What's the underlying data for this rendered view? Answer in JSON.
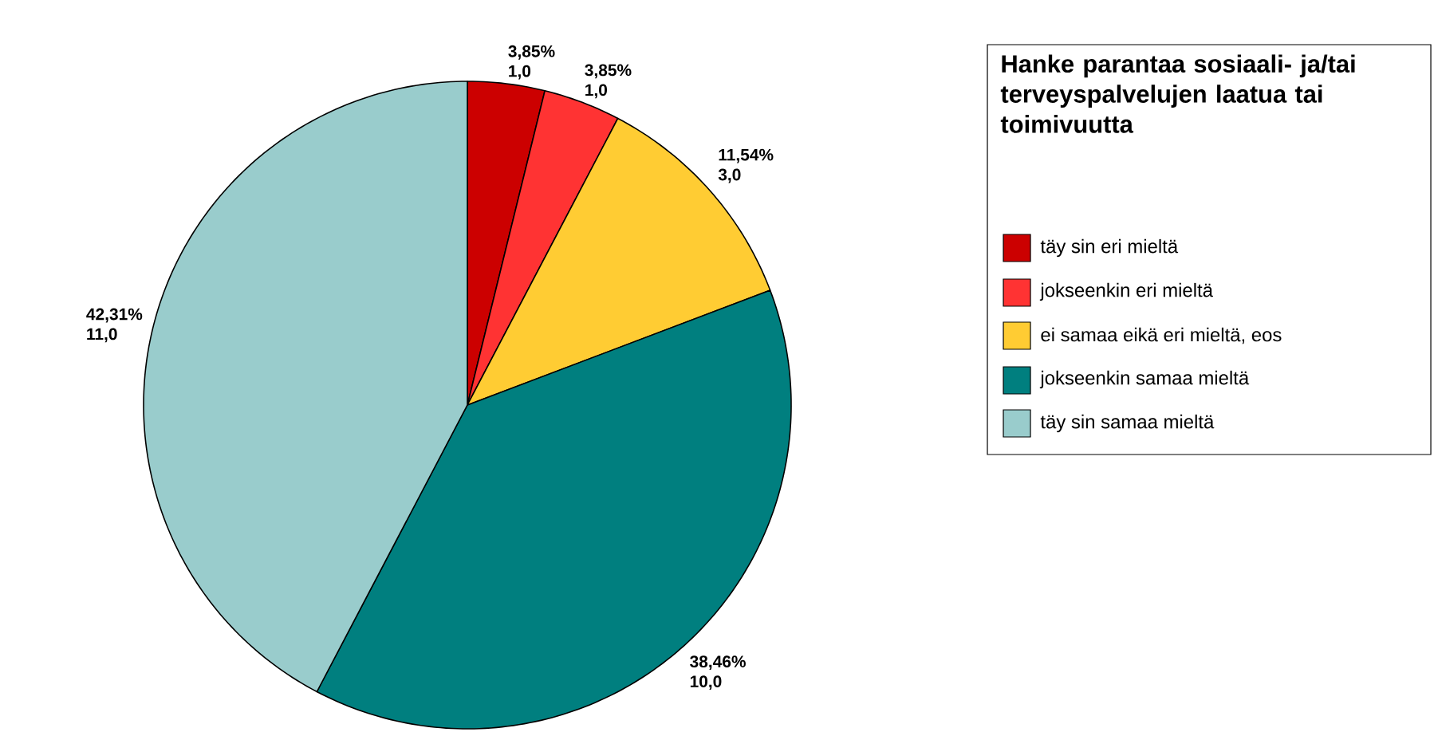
{
  "chart_data": {
    "type": "pie",
    "legend_title": "Hanke parantaa sosiaali- ja/tai terveyspalvelujen laatua tai toimivuutta",
    "categories": [
      "täy sin eri mieltä",
      "jokseenkin eri mieltä",
      "ei samaa eikä eri mieltä, eos",
      "jokseenkin samaa mieltä",
      "täy sin samaa mieltä"
    ],
    "values": [
      1,
      1,
      3,
      10,
      11
    ],
    "value_labels": [
      "3,85% 1,0",
      "3,85% 1,0",
      "11,54% 3,0",
      "38,46% 10,0",
      "42,31% 11,0"
    ],
    "colors": [
      "#cc0000",
      "#ff3333",
      "#ffcc33",
      "#007f7f",
      "#99cccc"
    ],
    "legend": "right"
  }
}
